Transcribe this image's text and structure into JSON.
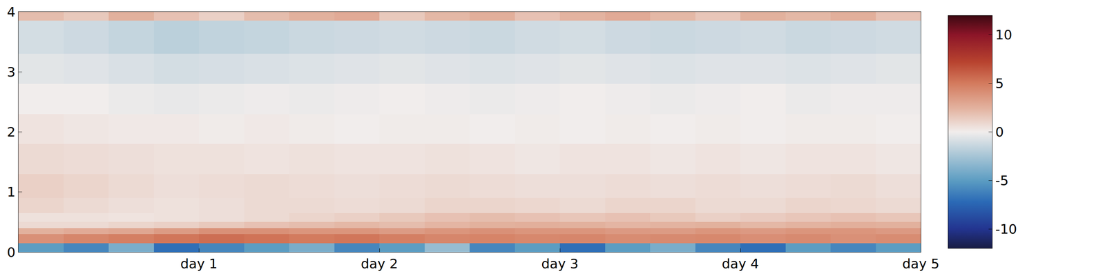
{
  "chart_data": {
    "type": "heatmap",
    "xlim": [
      0,
      5
    ],
    "xticks": [
      {
        "value": 1,
        "label": "day 1"
      },
      {
        "value": 2,
        "label": "day 2"
      },
      {
        "value": 3,
        "label": "day 3"
      },
      {
        "value": 4,
        "label": "day 4"
      },
      {
        "value": 5,
        "label": "day 5"
      }
    ],
    "ylim": [
      0,
      4
    ],
    "yticks": [
      0,
      1,
      2,
      3,
      4
    ],
    "x_edges": [
      0,
      0.25,
      0.5,
      0.75,
      1,
      1.25,
      1.5,
      1.75,
      2,
      2.25,
      2.5,
      2.75,
      3,
      3.25,
      3.5,
      3.75,
      4,
      4.25,
      4.5,
      4.75,
      5
    ],
    "y_edges": [
      0,
      0.15,
      0.3,
      0.4,
      0.5,
      0.65,
      0.9,
      1.3,
      1.8,
      2.3,
      2.8,
      3.3,
      3.85,
      4
    ],
    "z": [
      [
        -5,
        -6,
        -4,
        -7,
        -6,
        -5,
        -4,
        -6,
        -5,
        -3,
        -6,
        -5,
        -7,
        -5,
        -4,
        -6,
        -7,
        -5,
        -6,
        -5
      ],
      [
        4,
        4.5,
        4.8,
        5.2,
        5.5,
        5.3,
        5,
        5.2,
        4.8,
        4.5,
        4.6,
        4.4,
        4.5,
        4.2,
        4.3,
        4.4,
        4.1,
        4.3,
        4,
        4.2
      ],
      [
        2.5,
        2.8,
        3,
        3.5,
        4,
        4,
        3.8,
        3.8,
        3.5,
        3.8,
        4,
        3.8,
        3.8,
        3.6,
        3.5,
        3.8,
        3.6,
        3.8,
        3.8,
        3.6
      ],
      [
        0.8,
        0.8,
        1,
        1.2,
        1.5,
        1.8,
        2,
        2.2,
        2,
        2.3,
        2.5,
        2.6,
        2.5,
        2.3,
        2.4,
        2.5,
        2.2,
        2.4,
        2.6,
        2.5
      ],
      [
        0.5,
        0.5,
        0.4,
        0.5,
        0.6,
        0.8,
        1,
        1.2,
        1.5,
        1.8,
        2,
        1.8,
        1.6,
        1.8,
        1.5,
        1.2,
        1.4,
        1.6,
        1.8,
        1.6
      ],
      [
        1,
        0.8,
        0.6,
        0.5,
        0.6,
        0.8,
        0.8,
        0.7,
        0.8,
        1,
        1,
        0.9,
        0.8,
        1,
        1,
        0.8,
        0.8,
        1,
        0.9,
        0.8
      ],
      [
        1.2,
        1,
        0.8,
        0.6,
        0.7,
        0.8,
        0.7,
        0.6,
        0.7,
        0.8,
        0.7,
        0.6,
        0.6,
        0.7,
        0.6,
        0.7,
        0.6,
        0.7,
        0.8,
        0.6
      ],
      [
        0.8,
        0.7,
        0.6,
        0.5,
        0.5,
        0.4,
        0.5,
        0.4,
        0.4,
        0.5,
        0.4,
        0.3,
        0.4,
        0.4,
        0.3,
        0.4,
        0.3,
        0.4,
        0.4,
        0.3
      ],
      [
        0.4,
        0.3,
        0.2,
        0.2,
        0.1,
        0.2,
        0.1,
        0,
        0.1,
        0.1,
        0,
        0.1,
        0,
        0.1,
        0,
        0.1,
        0,
        0.1,
        0.1,
        0
      ],
      [
        0,
        0,
        -0.2,
        -0.3,
        -0.2,
        -0.1,
        -0.2,
        -0.1,
        0,
        -0.1,
        -0.2,
        -0.1,
        0,
        -0.1,
        -0.2,
        -0.1,
        0,
        -0.2,
        -0.1,
        -0.1
      ],
      [
        -0.5,
        -0.6,
        -0.8,
        -1,
        -0.9,
        -0.8,
        -0.7,
        -0.6,
        -0.5,
        -0.6,
        -0.7,
        -0.6,
        -0.5,
        -0.6,
        -0.7,
        -0.6,
        -0.6,
        -0.7,
        -0.6,
        -0.5
      ],
      [
        -1,
        -1.2,
        -1.5,
        -1.8,
        -1.6,
        -1.5,
        -1.3,
        -1.2,
        -1.1,
        -1.2,
        -1.3,
        -1.1,
        -1,
        -1.2,
        -1.3,
        -1.2,
        -1.1,
        -1.3,
        -1.2,
        -1.1
      ],
      [
        2,
        1.5,
        2.5,
        1.8,
        1.2,
        2,
        2.5,
        2.8,
        1.5,
        2.2,
        2.6,
        1.8,
        2.4,
        2.8,
        2.2,
        1.6,
        2.5,
        2.2,
        2.6,
        1.8
      ]
    ],
    "zlim": [
      -12,
      12
    ],
    "zticks": [
      -10,
      -5,
      0,
      5,
      10
    ]
  }
}
